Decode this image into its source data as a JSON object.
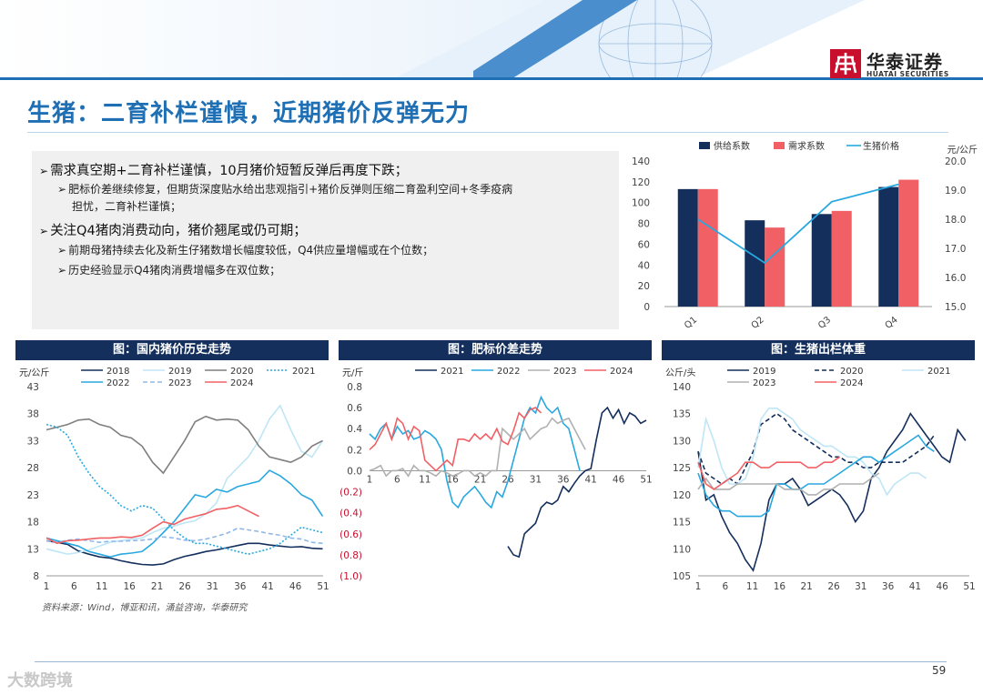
{
  "header": {
    "logo_cn": "华泰证券",
    "logo_en": "HUATAI SECURITIES",
    "brand_color": "#c8102e",
    "band_color": "#1f6fb5"
  },
  "title": "生猪：二育补栏谨慎，近期猪价反弹无力",
  "bullets": {
    "b1": "需求真空期+二育补栏谨慎，10月猪价短暂反弹后再度下跌；",
    "b1_1a": "肥标价差继续修复，但期货深度贴水给出悲观指引+猪价反弹则压缩二育盈利空间+冬季疫病",
    "b1_1b": "担忧，二育补栏谨慎；",
    "b2": "关注Q4猪肉消费动向，猪价翘尾或仍可期；",
    "b2_1": "前期母猪持续去化及新生仔猪数增长幅度较低，Q4供应量增幅或在个位数；",
    "b2_2": "历史经验显示Q4猪肉消费增幅多在双位数；"
  },
  "panels": {
    "p1": "图：国内猪价历史走势",
    "p2": "图：肥标价差走势",
    "p3": "图：生猪出栏体重"
  },
  "source": "资料来源：Wind，博亚和讯，涌益咨询，华泰研究",
  "page_number": "59",
  "watermark": "大数跨境",
  "chart_data": [
    {
      "type": "bar",
      "categories": [
        "Q1",
        "Q2",
        "Q3",
        "Q4"
      ],
      "series": [
        {
          "name": "供给系数",
          "kind": "bar",
          "color": "#142f5c",
          "values": [
            113,
            83,
            89,
            115
          ]
        },
        {
          "name": "需求系数",
          "kind": "bar",
          "color": "#f06064",
          "values": [
            113,
            76,
            92,
            122
          ]
        },
        {
          "name": "生猪价格",
          "kind": "line",
          "axis": "right",
          "color": "#29a8e0",
          "values": [
            18.0,
            16.5,
            18.6,
            19.2
          ]
        }
      ],
      "ylim": [
        0,
        140
      ],
      "yticks": [
        0,
        20,
        40,
        60,
        80,
        100,
        120,
        140
      ],
      "y2lim": [
        15.0,
        20.0
      ],
      "y2ticks": [
        "15.0",
        "16.0",
        "17.0",
        "18.0",
        "19.0",
        "20.0"
      ],
      "y2label": "元/公斤"
    },
    {
      "type": "line",
      "ylabel": "元/公斤",
      "ylim": [
        8,
        43
      ],
      "yticks": [
        8,
        13,
        18,
        23,
        28,
        33,
        38,
        43
      ],
      "xticks": [
        1,
        6,
        11,
        16,
        21,
        26,
        31,
        36,
        41,
        46,
        51
      ],
      "series": [
        {
          "name": "2018",
          "color": "#142f5c",
          "dash": "",
          "values": [
            14.5,
            14.2,
            13.8,
            12.6,
            12,
            11.5,
            11.3,
            10.8,
            10.4,
            10.1,
            10,
            10.2,
            11,
            11.6,
            12,
            12.5,
            12.8,
            13.2,
            13.6,
            14,
            14,
            13.7,
            13.5,
            13.3,
            13.4,
            13.1,
            13
          ]
        },
        {
          "name": "2019",
          "color": "#bfe6f5",
          "dash": "",
          "values": [
            13,
            12.5,
            12,
            12.3,
            12.8,
            13.5,
            14.2,
            14.5,
            14.8,
            15,
            16,
            16.8,
            17.2,
            17.8,
            18.2,
            19.5,
            21.5,
            26,
            28,
            30,
            33,
            37,
            39.5,
            35,
            31,
            30,
            33
          ]
        },
        {
          "name": "2020",
          "color": "#7f7f7f",
          "dash": "",
          "values": [
            35,
            35.5,
            36,
            36.8,
            37,
            36,
            35.5,
            34,
            33.5,
            32,
            29,
            27,
            30,
            33,
            36.5,
            37.5,
            36.8,
            37,
            36.8,
            35,
            32,
            30,
            29.5,
            29,
            30,
            32,
            33
          ]
        },
        {
          "name": "2021",
          "color": "#29a8e0",
          "dash": "2,2",
          "values": [
            36,
            35.5,
            34,
            30,
            27,
            24.5,
            23,
            21,
            20,
            21,
            20.5,
            18.5,
            16.5,
            15,
            14,
            14,
            13.5,
            13,
            12.5,
            12,
            12.5,
            13,
            14,
            15.5,
            17,
            16.5,
            16
          ]
        },
        {
          "name": "2022",
          "color": "#29a8e0",
          "dash": "",
          "values": [
            15,
            14.5,
            14,
            13.5,
            12.5,
            12,
            11.5,
            12,
            12.2,
            12.5,
            14,
            16,
            18,
            20.5,
            23,
            22.5,
            24,
            23.5,
            24.5,
            25,
            25.5,
            27.5,
            26.5,
            25,
            23,
            22,
            19
          ]
        },
        {
          "name": "2023",
          "color": "#8fb8e8",
          "dash": "5,3",
          "values": [
            14.5,
            14.2,
            14.6,
            14.8,
            14.5,
            14.2,
            14.4,
            14.4,
            14.5,
            14.6,
            14.8,
            15.2,
            15,
            14.6,
            14.5,
            14.8,
            15.3,
            15.9,
            16.8,
            16.5,
            16.2,
            15.8,
            15.5,
            15,
            14.8,
            14.2,
            14
          ]
        },
        {
          "name": "2024",
          "color": "#f06064",
          "dash": "",
          "values": [
            15,
            14,
            14.5,
            14.6,
            14.8,
            15,
            15,
            15.2,
            15.1,
            15.5,
            16.8,
            18,
            17.5,
            18.5,
            19,
            19.5,
            20.3,
            20.5,
            21,
            20,
            19
          ]
        }
      ]
    },
    {
      "type": "line",
      "ylabel": "元/斤",
      "ylim": [
        -1.0,
        0.8
      ],
      "yticks": [
        "0.8",
        "0.6",
        "0.4",
        "0.2",
        "0.0",
        "(0.2)",
        "(0.4)",
        "(0.6)",
        "(0.8)",
        "(1.0)"
      ],
      "xticks": [
        1,
        6,
        11,
        16,
        21,
        26,
        31,
        36,
        41,
        46,
        51
      ],
      "series": [
        {
          "name": "2021",
          "color": "#142f5c",
          "dash": "",
          "values": [
            null,
            null,
            null,
            null,
            null,
            null,
            null,
            null,
            null,
            null,
            null,
            null,
            null,
            null,
            null,
            null,
            null,
            null,
            null,
            null,
            null,
            null,
            null,
            null,
            null,
            -0.72,
            -0.8,
            -0.82,
            -0.6,
            -0.55,
            -0.5,
            -0.35,
            -0.3,
            -0.32,
            -0.28,
            -0.15,
            -0.2,
            -0.12,
            -0.05,
            0.0,
            0.02,
            0.3,
            0.55,
            0.6,
            0.5,
            0.58,
            0.45,
            0.55,
            0.52,
            0.45,
            0.48
          ]
        },
        {
          "name": "2022",
          "color": "#29a8e0",
          "dash": "",
          "values": [
            0.35,
            0.3,
            0.4,
            0.45,
            0.3,
            0.42,
            0.35,
            0.38,
            0.3,
            0.32,
            0.38,
            0.35,
            0.3,
            0.2,
            -0.1,
            -0.3,
            -0.35,
            -0.25,
            -0.2,
            -0.15,
            -0.22,
            -0.3,
            -0.35,
            -0.2,
            -0.25,
            -0.1,
            0.1,
            0.3,
            0.5,
            0.6,
            0.55,
            0.7,
            0.6,
            0.55,
            0.6,
            0.45,
            0.4,
            0.2,
            0.0
          ]
        },
        {
          "name": "2023",
          "color": "#b0b0b0",
          "dash": "",
          "values": [
            0.0,
            0.02,
            0.05,
            -0.05,
            0.0,
            0.0,
            0.02,
            -0.05,
            0.05,
            0.0,
            0.0,
            -0.02,
            -0.05,
            0.0,
            -0.02,
            -0.05,
            -0.03,
            0.0,
            0.0,
            -0.05,
            -0.02,
            -0.05,
            0.0,
            0.0,
            0.4,
            0.35,
            0.3,
            0.35,
            0.4,
            0.3,
            0.35,
            0.4,
            0.42,
            0.5,
            0.45,
            0.48,
            0.5,
            0.4,
            0.3,
            0.2
          ]
        },
        {
          "name": "2024",
          "color": "#f06064",
          "dash": "",
          "values": [
            0.2,
            0.25,
            0.35,
            0.45,
            0.3,
            0.5,
            0.45,
            0.3,
            0.42,
            0.38,
            0.1,
            0.05,
            0.0,
            0.05,
            0.1,
            0.05,
            0.3,
            0.3,
            0.28,
            0.35,
            0.3,
            0.35,
            0.3,
            0.4,
            0.28,
            0.25,
            0.38,
            0.55,
            0.5,
            0.58,
            0.6,
            0.55
          ]
        }
      ]
    },
    {
      "type": "line",
      "ylabel": "公斤/头",
      "ylim": [
        105,
        140
      ],
      "yticks": [
        105,
        110,
        115,
        120,
        125,
        130,
        135,
        140
      ],
      "xticks": [
        1,
        6,
        11,
        16,
        21,
        26,
        31,
        36,
        41,
        46,
        51
      ],
      "series": [
        {
          "name": "2019",
          "color": "#142f5c",
          "dash": "",
          "values": [
            128,
            119,
            120,
            116,
            113,
            111,
            108,
            106,
            111,
            119,
            122,
            122,
            123,
            121,
            118,
            119,
            120,
            121,
            120,
            118,
            115,
            117,
            123,
            125,
            128,
            130,
            132,
            135,
            133,
            131,
            129,
            127,
            126,
            132,
            130
          ]
        },
        {
          "name": "2020",
          "color": "#142f5c",
          "dash": "5,3",
          "values": [
            128,
            124,
            123,
            122,
            123,
            122,
            125,
            128,
            133,
            134,
            135,
            134,
            132,
            131,
            130,
            129,
            128,
            127,
            127,
            126,
            126,
            125,
            125,
            126,
            126,
            126,
            126,
            127,
            128,
            129,
            131
          ]
        },
        {
          "name": "2021",
          "color": "#bfe6f5",
          "dash": "",
          "values": [
            125,
            134,
            130,
            125,
            122,
            122,
            123,
            127,
            134,
            136,
            136,
            135,
            134,
            132,
            131,
            130,
            129,
            129,
            128,
            127,
            127,
            126,
            124,
            123,
            120,
            122,
            123,
            124,
            124,
            123
          ]
        },
        {
          "name": "2022",
          "color": "#29a8e0",
          "dash": "",
          "values": [
            124,
            120,
            118,
            117,
            117,
            116,
            116,
            116,
            116,
            117,
            122,
            122,
            121,
            121,
            122,
            122,
            122,
            123,
            124,
            125,
            126,
            127,
            127,
            126,
            127,
            128,
            129,
            130,
            131,
            129,
            128
          ]
        },
        {
          "name": "2023",
          "color": "#b0b0b0",
          "dash": "",
          "values": [
            121,
            123,
            121,
            121,
            121,
            122,
            122,
            122,
            122,
            122,
            122,
            121,
            121,
            121,
            120,
            120,
            121,
            121,
            122,
            122,
            122,
            122,
            123,
            124
          ]
        },
        {
          "name": "2024",
          "color": "#f06064",
          "dash": "",
          "values": [
            126,
            122,
            121,
            122,
            123,
            124,
            126,
            126,
            125,
            125,
            126,
            126,
            126,
            126,
            125,
            125,
            126,
            126,
            127
          ]
        }
      ]
    }
  ]
}
